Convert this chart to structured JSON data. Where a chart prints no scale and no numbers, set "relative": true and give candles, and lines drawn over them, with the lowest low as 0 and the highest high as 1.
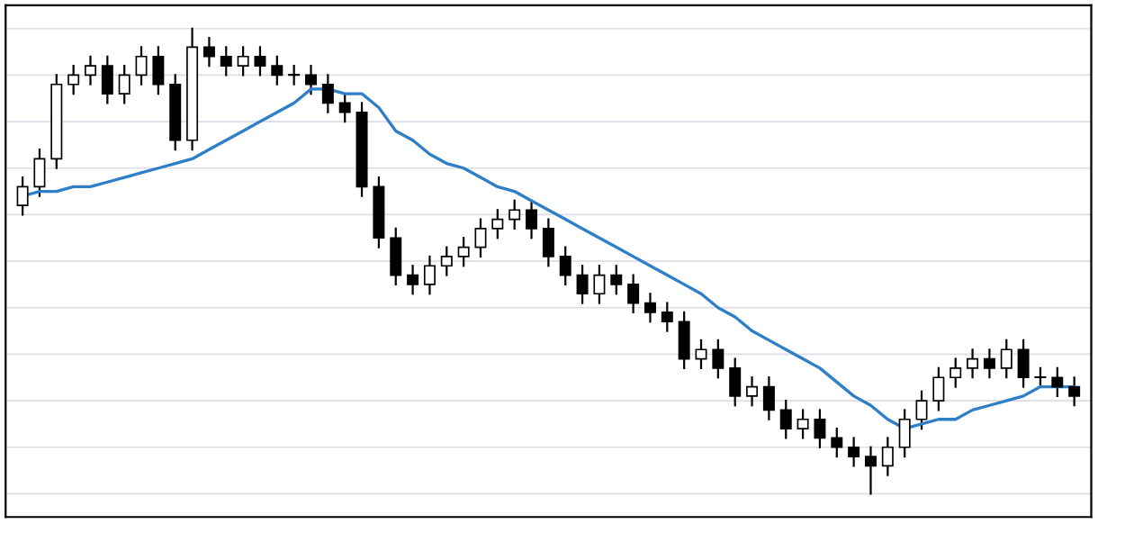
{
  "chart_data": {
    "type": "candlestick",
    "relative": true,
    "grid": "y",
    "categories": [
      null,
      null,
      null,
      null,
      null,
      null,
      null,
      null,
      null,
      null,
      null,
      null,
      null,
      null,
      null,
      null,
      null,
      null,
      null,
      null,
      null,
      null,
      null,
      null,
      null,
      null,
      null,
      null,
      null,
      null,
      null,
      null,
      null,
      null,
      null,
      null,
      null,
      null,
      null,
      null,
      null,
      null,
      null,
      null,
      null,
      null,
      null,
      null,
      null,
      null,
      null,
      null,
      null,
      null,
      null,
      null,
      null,
      null,
      null,
      null,
      null,
      null,
      null
    ],
    "ohlc": [
      [
        0.62,
        0.68,
        0.6,
        0.66
      ],
      [
        0.66,
        0.74,
        0.64,
        0.72
      ],
      [
        0.72,
        0.9,
        0.7,
        0.88
      ],
      [
        0.88,
        0.92,
        0.86,
        0.9
      ],
      [
        0.9,
        0.94,
        0.88,
        0.92
      ],
      [
        0.92,
        0.94,
        0.84,
        0.86
      ],
      [
        0.86,
        0.92,
        0.84,
        0.9
      ],
      [
        0.9,
        0.96,
        0.88,
        0.94
      ],
      [
        0.94,
        0.96,
        0.86,
        0.88
      ],
      [
        0.88,
        0.9,
        0.74,
        0.76
      ],
      [
        0.76,
        1.0,
        0.74,
        0.96
      ],
      [
        0.96,
        0.98,
        0.92,
        0.94
      ],
      [
        0.94,
        0.96,
        0.9,
        0.92
      ],
      [
        0.92,
        0.96,
        0.9,
        0.94
      ],
      [
        0.94,
        0.96,
        0.9,
        0.92
      ],
      [
        0.92,
        0.94,
        0.88,
        0.9
      ],
      [
        0.9,
        0.92,
        0.88,
        0.9
      ],
      [
        0.9,
        0.92,
        0.86,
        0.88
      ],
      [
        0.88,
        0.9,
        0.82,
        0.84
      ],
      [
        0.84,
        0.86,
        0.8,
        0.82
      ],
      [
        0.82,
        0.84,
        0.64,
        0.66
      ],
      [
        0.66,
        0.68,
        0.53,
        0.55
      ],
      [
        0.55,
        0.57,
        0.45,
        0.47
      ],
      [
        0.47,
        0.49,
        0.43,
        0.45
      ],
      [
        0.45,
        0.51,
        0.43,
        0.49
      ],
      [
        0.49,
        0.53,
        0.47,
        0.51
      ],
      [
        0.51,
        0.55,
        0.49,
        0.53
      ],
      [
        0.53,
        0.59,
        0.51,
        0.57
      ],
      [
        0.57,
        0.61,
        0.55,
        0.59
      ],
      [
        0.59,
        0.63,
        0.57,
        0.61
      ],
      [
        0.61,
        0.63,
        0.55,
        0.57
      ],
      [
        0.57,
        0.59,
        0.49,
        0.51
      ],
      [
        0.51,
        0.53,
        0.45,
        0.47
      ],
      [
        0.47,
        0.49,
        0.41,
        0.43
      ],
      [
        0.43,
        0.49,
        0.41,
        0.47
      ],
      [
        0.47,
        0.49,
        0.43,
        0.45
      ],
      [
        0.45,
        0.47,
        0.39,
        0.41
      ],
      [
        0.41,
        0.43,
        0.37,
        0.39
      ],
      [
        0.39,
        0.41,
        0.35,
        0.37
      ],
      [
        0.37,
        0.39,
        0.27,
        0.29
      ],
      [
        0.29,
        0.33,
        0.27,
        0.31
      ],
      [
        0.31,
        0.33,
        0.25,
        0.27
      ],
      [
        0.27,
        0.29,
        0.19,
        0.21
      ],
      [
        0.21,
        0.25,
        0.19,
        0.23
      ],
      [
        0.23,
        0.25,
        0.16,
        0.18
      ],
      [
        0.18,
        0.2,
        0.12,
        0.14
      ],
      [
        0.14,
        0.18,
        0.12,
        0.16
      ],
      [
        0.16,
        0.18,
        0.1,
        0.12
      ],
      [
        0.12,
        0.14,
        0.08,
        0.1
      ],
      [
        0.1,
        0.12,
        0.06,
        0.08
      ],
      [
        0.08,
        0.1,
        0.0,
        0.06
      ],
      [
        0.06,
        0.12,
        0.04,
        0.1
      ],
      [
        0.1,
        0.18,
        0.08,
        0.16
      ],
      [
        0.16,
        0.22,
        0.14,
        0.2
      ],
      [
        0.2,
        0.27,
        0.18,
        0.25
      ],
      [
        0.25,
        0.29,
        0.23,
        0.27
      ],
      [
        0.27,
        0.31,
        0.25,
        0.29
      ],
      [
        0.29,
        0.31,
        0.25,
        0.27
      ],
      [
        0.27,
        0.33,
        0.25,
        0.31
      ],
      [
        0.31,
        0.33,
        0.23,
        0.25
      ],
      [
        0.25,
        0.27,
        0.23,
        0.25
      ],
      [
        0.25,
        0.27,
        0.21,
        0.23
      ],
      [
        0.23,
        0.25,
        0.19,
        0.21
      ]
    ],
    "color": "#000000",
    "series": [
      {
        "type": "line",
        "color": "#2f7fc8",
        "values": [
          0.64,
          0.65,
          0.65,
          0.66,
          0.66,
          0.67,
          0.68,
          0.69,
          0.7,
          0.71,
          0.72,
          0.74,
          0.76,
          0.78,
          0.8,
          0.82,
          0.84,
          0.87,
          0.87,
          0.86,
          0.86,
          0.83,
          0.78,
          0.76,
          0.73,
          0.71,
          0.7,
          0.68,
          0.66,
          0.65,
          0.63,
          0.61,
          0.59,
          0.57,
          0.55,
          0.53,
          0.51,
          0.49,
          0.47,
          0.45,
          0.43,
          0.4,
          0.38,
          0.35,
          0.33,
          0.31,
          0.29,
          0.27,
          0.24,
          0.21,
          0.19,
          0.16,
          0.14,
          0.15,
          0.16,
          0.16,
          0.18,
          0.19,
          0.2,
          0.21,
          0.23,
          0.23,
          0.23
        ]
      }
    ]
  }
}
